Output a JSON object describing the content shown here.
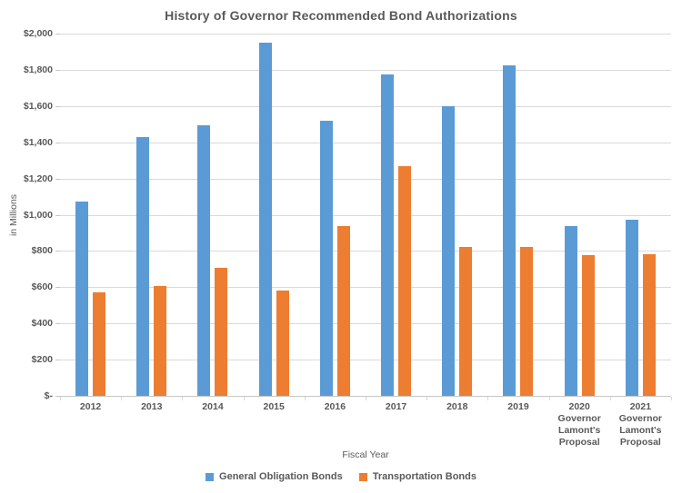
{
  "chart_data": {
    "type": "bar",
    "title": "History of Governor Recommended Bond Authorizations",
    "xlabel": "Fiscal Year",
    "ylabel": "in Millions",
    "ylim": [
      0,
      2000
    ],
    "ytick_step": 200,
    "ytick_labels": [
      "$-",
      "$200",
      "$400",
      "$600",
      "$800",
      "$1,000",
      "$1,200",
      "$1,400",
      "$1,600",
      "$1,800",
      "$2,000"
    ],
    "categories": [
      [
        "2012"
      ],
      [
        "2013"
      ],
      [
        "2014"
      ],
      [
        "2015"
      ],
      [
        "2016"
      ],
      [
        "2017"
      ],
      [
        "2018"
      ],
      [
        "2019"
      ],
      [
        "2020",
        "Governor",
        "Lamont's",
        "Proposal"
      ],
      [
        "2021",
        "Governor",
        "Lamont's",
        "Proposal"
      ]
    ],
    "series": [
      {
        "name": "General Obligation Bonds",
        "color": "#5B9BD5",
        "values": [
          1075,
          1430,
          1495,
          1950,
          1520,
          1775,
          1600,
          1825,
          940,
          975
        ]
      },
      {
        "name": "Transportation Bonds",
        "color": "#ED7D31",
        "values": [
          570,
          605,
          705,
          580,
          940,
          1270,
          820,
          820,
          775,
          780
        ]
      }
    ],
    "legend_position": "bottom",
    "grid": true
  },
  "colors": {
    "text": "#595959",
    "gridline": "#D9D9D9",
    "axis_line": "#C6C6C6",
    "background": "#FFFFFF"
  }
}
